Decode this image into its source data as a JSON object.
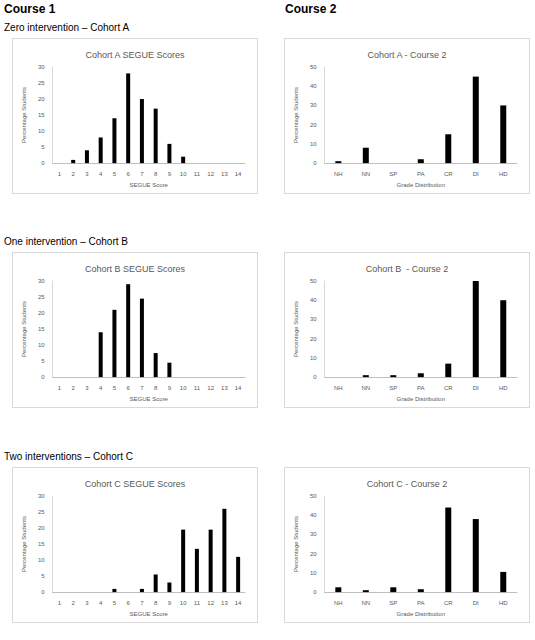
{
  "headings": {
    "columns": [
      "Course 1",
      "Course 2"
    ],
    "rows": [
      "Zero intervention – Cohort A",
      "One intervention – Cohort B",
      "Two interventions – Cohort C"
    ]
  },
  "chart_data": [
    {
      "type": "bar",
      "title": "Cohort A SEGUE Scores",
      "x_label": "SEGUE Score",
      "y_label": "Percentage Students",
      "categories": [
        "1",
        "2",
        "3",
        "4",
        "5",
        "6",
        "7",
        "8",
        "9",
        "10",
        "11",
        "12",
        "13",
        "14"
      ],
      "values": [
        0,
        1,
        4,
        8,
        14,
        28,
        20,
        17,
        6,
        2,
        0,
        0,
        0,
        0
      ],
      "color": "#000000",
      "ylim": [
        0,
        30
      ],
      "yticks": [
        0,
        5,
        10,
        15,
        20,
        25,
        30
      ],
      "grid": false
    },
    {
      "type": "bar",
      "title": "Cohort A - Course 2",
      "x_label": "Grade Distribution",
      "y_label": "Percentage Students",
      "categories": [
        "NH",
        "NN",
        "SP",
        "PA",
        "CR",
        "DI",
        "HD"
      ],
      "values": [
        1,
        8,
        0,
        2,
        15,
        45,
        30
      ],
      "color": "#000000",
      "ylim": [
        0,
        50
      ],
      "yticks": [
        0,
        10,
        20,
        30,
        40,
        50
      ],
      "grid": false
    },
    {
      "type": "bar",
      "title": "Cohort B SEGUE Scores",
      "x_label": "SEGUE Score",
      "y_label": "Percentage Students",
      "categories": [
        "1",
        "2",
        "3",
        "4",
        "5",
        "6",
        "7",
        "8",
        "9",
        "10",
        "11",
        "12",
        "13",
        "14"
      ],
      "values": [
        0,
        0,
        0,
        14,
        21,
        29,
        24.5,
        7.5,
        4.5,
        0,
        0,
        0,
        0,
        0
      ],
      "color": "#000000",
      "ylim": [
        0,
        30
      ],
      "yticks": [
        0,
        5,
        10,
        15,
        20,
        25,
        30
      ],
      "grid": false
    },
    {
      "type": "bar",
      "title": "Cohort B  - Course 2",
      "x_label": "Grade Distribution",
      "y_label": "Percentage Students",
      "categories": [
        "NH",
        "NN",
        "SP",
        "PA",
        "CR",
        "DI",
        "HD"
      ],
      "values": [
        0,
        1,
        1,
        2,
        7,
        50,
        40
      ],
      "color": "#000000",
      "ylim": [
        0,
        50
      ],
      "yticks": [
        0,
        10,
        20,
        30,
        40,
        50
      ],
      "grid": false
    },
    {
      "type": "bar",
      "title": "Cohort C SEGUE Scores",
      "x_label": "SEGUE Score",
      "y_label": "Percentage Students",
      "categories": [
        "1",
        "2",
        "3",
        "4",
        "5",
        "6",
        "7",
        "8",
        "9",
        "10",
        "11",
        "12",
        "13",
        "14"
      ],
      "values": [
        0,
        0,
        0,
        0,
        1,
        0,
        1,
        5.5,
        3,
        19.5,
        13.5,
        19.5,
        26,
        11
      ],
      "color": "#000000",
      "ylim": [
        0,
        30
      ],
      "yticks": [
        0,
        5,
        10,
        15,
        20,
        25,
        30
      ],
      "grid": false
    },
    {
      "type": "bar",
      "title": "Cohort C - Course 2",
      "x_label": "Grade Distribution",
      "y_label": "Percentage Students",
      "categories": [
        "NH",
        "NN",
        "SP",
        "PA",
        "CR",
        "DI",
        "HD"
      ],
      "values": [
        2.5,
        1,
        2.5,
        1.5,
        44,
        38,
        10.5
      ],
      "color": "#000000",
      "ylim": [
        0,
        50
      ],
      "yticks": [
        0,
        10,
        20,
        30,
        40,
        50
      ],
      "grid": false
    }
  ]
}
